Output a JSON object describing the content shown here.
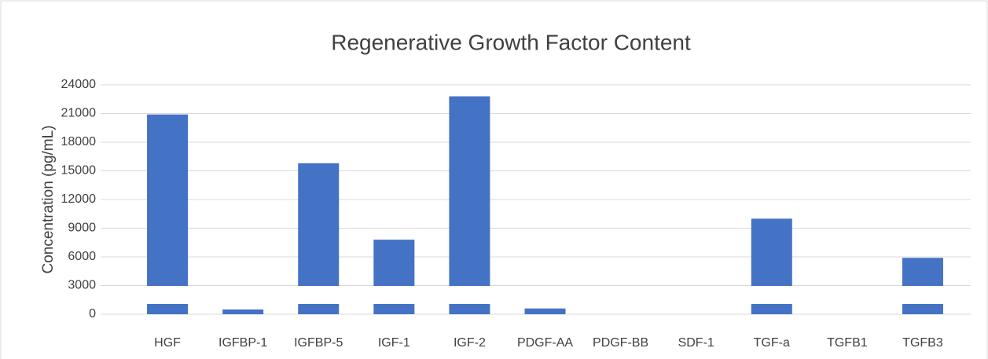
{
  "chart_data": {
    "type": "bar",
    "title": "Regenerative Growth Factor Content",
    "y_label": "Concentration (pg/mL)",
    "categories": [
      "HGF",
      "IGFBP-1",
      "IGFBP-5",
      "IGF-1",
      "IGF-2",
      "PDGF-AA",
      "PDGF-BB",
      "SDF-1",
      "TGF-a",
      "TGFB1",
      "TGFB3"
    ],
    "values": [
      20900,
      500,
      15800,
      7800,
      22800,
      600,
      0,
      0,
      10000,
      0,
      5900
    ],
    "color": "#4472c4",
    "ylim": [
      0,
      24000
    ],
    "yticks": [
      0,
      3000,
      6000,
      9000,
      12000,
      15000,
      18000,
      21000,
      24000
    ],
    "grid": true
  }
}
